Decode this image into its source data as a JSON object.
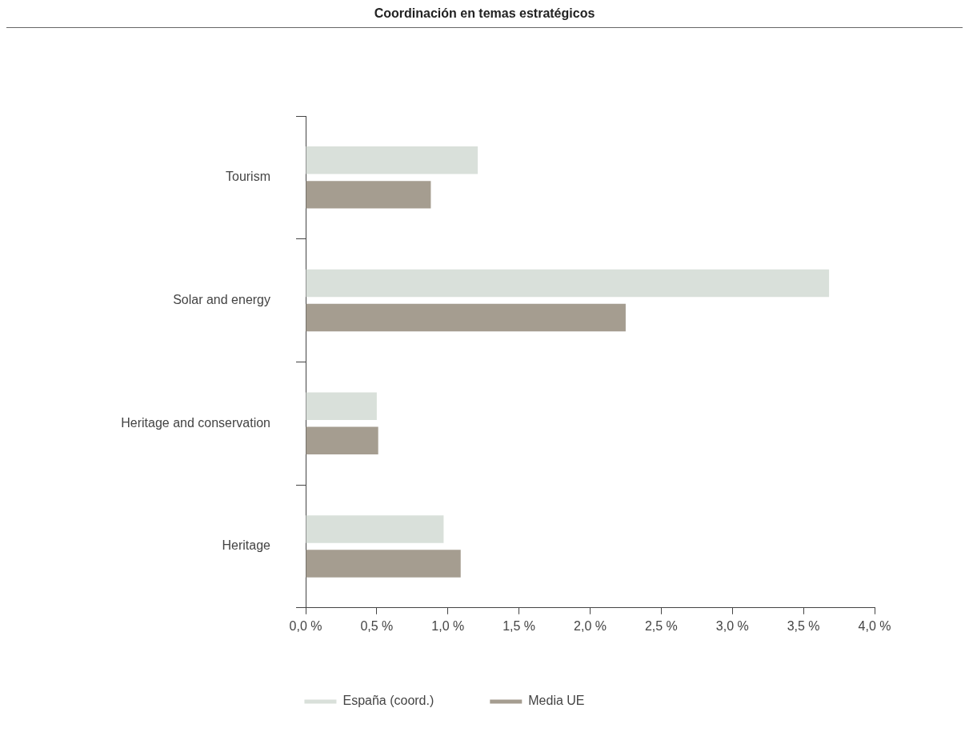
{
  "chart_data": {
    "type": "bar",
    "orientation": "horizontal",
    "title": "Coordinación en temas estratégicos",
    "categories": [
      "Tourism",
      "Solar and energy",
      "Heritage and conservation",
      "Heritage"
    ],
    "series": [
      {
        "name": "España (coord.)",
        "color": "#d9e0da",
        "values": [
          1.21,
          3.68,
          0.5,
          0.97
        ]
      },
      {
        "name": "Media UE",
        "color": "#a59d90",
        "values": [
          0.88,
          2.25,
          0.51,
          1.09
        ]
      }
    ],
    "xlim": [
      0,
      4
    ],
    "xticks": [
      {
        "value": 0,
        "label": "0,0 %"
      },
      {
        "value": 0.5,
        "label": "0,5 %"
      },
      {
        "value": 1,
        "label": "1,0 %"
      },
      {
        "value": 1.5,
        "label": "1,5 %"
      },
      {
        "value": 2,
        "label": "2,0 %"
      },
      {
        "value": 2.5,
        "label": "2,5 %"
      },
      {
        "value": 3,
        "label": "3,0 %"
      },
      {
        "value": 3.5,
        "label": "3,5 %"
      },
      {
        "value": 4,
        "label": "4,0 %"
      }
    ],
    "grid": false,
    "legend": "bottom"
  }
}
